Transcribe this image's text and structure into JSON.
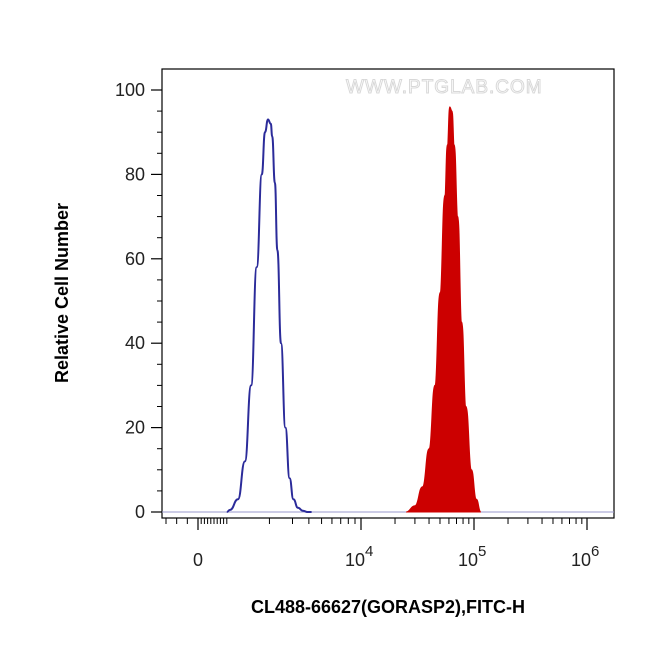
{
  "chart_data": {
    "type": "area",
    "title": "",
    "xlabel": "CL488-66627(GORASP2),FITC-H",
    "ylabel": "Relative Cell Number",
    "watermark": "WWW.PTGLAB.COM",
    "x_scale": "biexponential",
    "xlim": [
      -300,
      1600000
    ],
    "ylim": [
      0,
      100
    ],
    "grid": false,
    "legend": "none",
    "x_ticks": [
      {
        "value": 0,
        "base": "0",
        "exp": ""
      },
      {
        "value": 10000,
        "base": "10",
        "exp": "4"
      },
      {
        "value": 100000,
        "base": "10",
        "exp": "5"
      },
      {
        "value": 1000000,
        "base": "10",
        "exp": "6"
      }
    ],
    "y_ticks": [
      {
        "value": 0,
        "label": "0"
      },
      {
        "value": 20,
        "label": "20"
      },
      {
        "value": 40,
        "label": "40"
      },
      {
        "value": 60,
        "label": "60"
      },
      {
        "value": 80,
        "label": "80"
      },
      {
        "value": 100,
        "label": "100"
      }
    ],
    "series": [
      {
        "style": "outline",
        "color": "#2b2b9a",
        "x": [
          900,
          1000,
          1150,
          1300,
          1450,
          1600,
          1750,
          1850,
          1950,
          2050,
          2100,
          2200,
          2300,
          2450,
          2650,
          2850,
          3050,
          3300,
          3600,
          3900,
          4200
        ],
        "y": [
          0,
          0.5,
          3,
          12,
          30,
          58,
          80,
          90,
          93,
          92,
          89,
          78,
          62,
          40,
          20,
          8,
          3,
          1,
          0.3,
          0,
          0
        ]
      },
      {
        "style": "filled",
        "color": "#cc0000",
        "x": [
          25000,
          30000,
          35000,
          40000,
          45000,
          50000,
          55000,
          58000,
          61000,
          64000,
          67000,
          72000,
          78000,
          85000,
          95000,
          105000,
          115000
        ],
        "y": [
          0,
          1.5,
          6,
          15,
          30,
          52,
          75,
          87,
          96,
          95,
          87,
          70,
          45,
          25,
          10,
          3,
          0
        ]
      }
    ]
  }
}
